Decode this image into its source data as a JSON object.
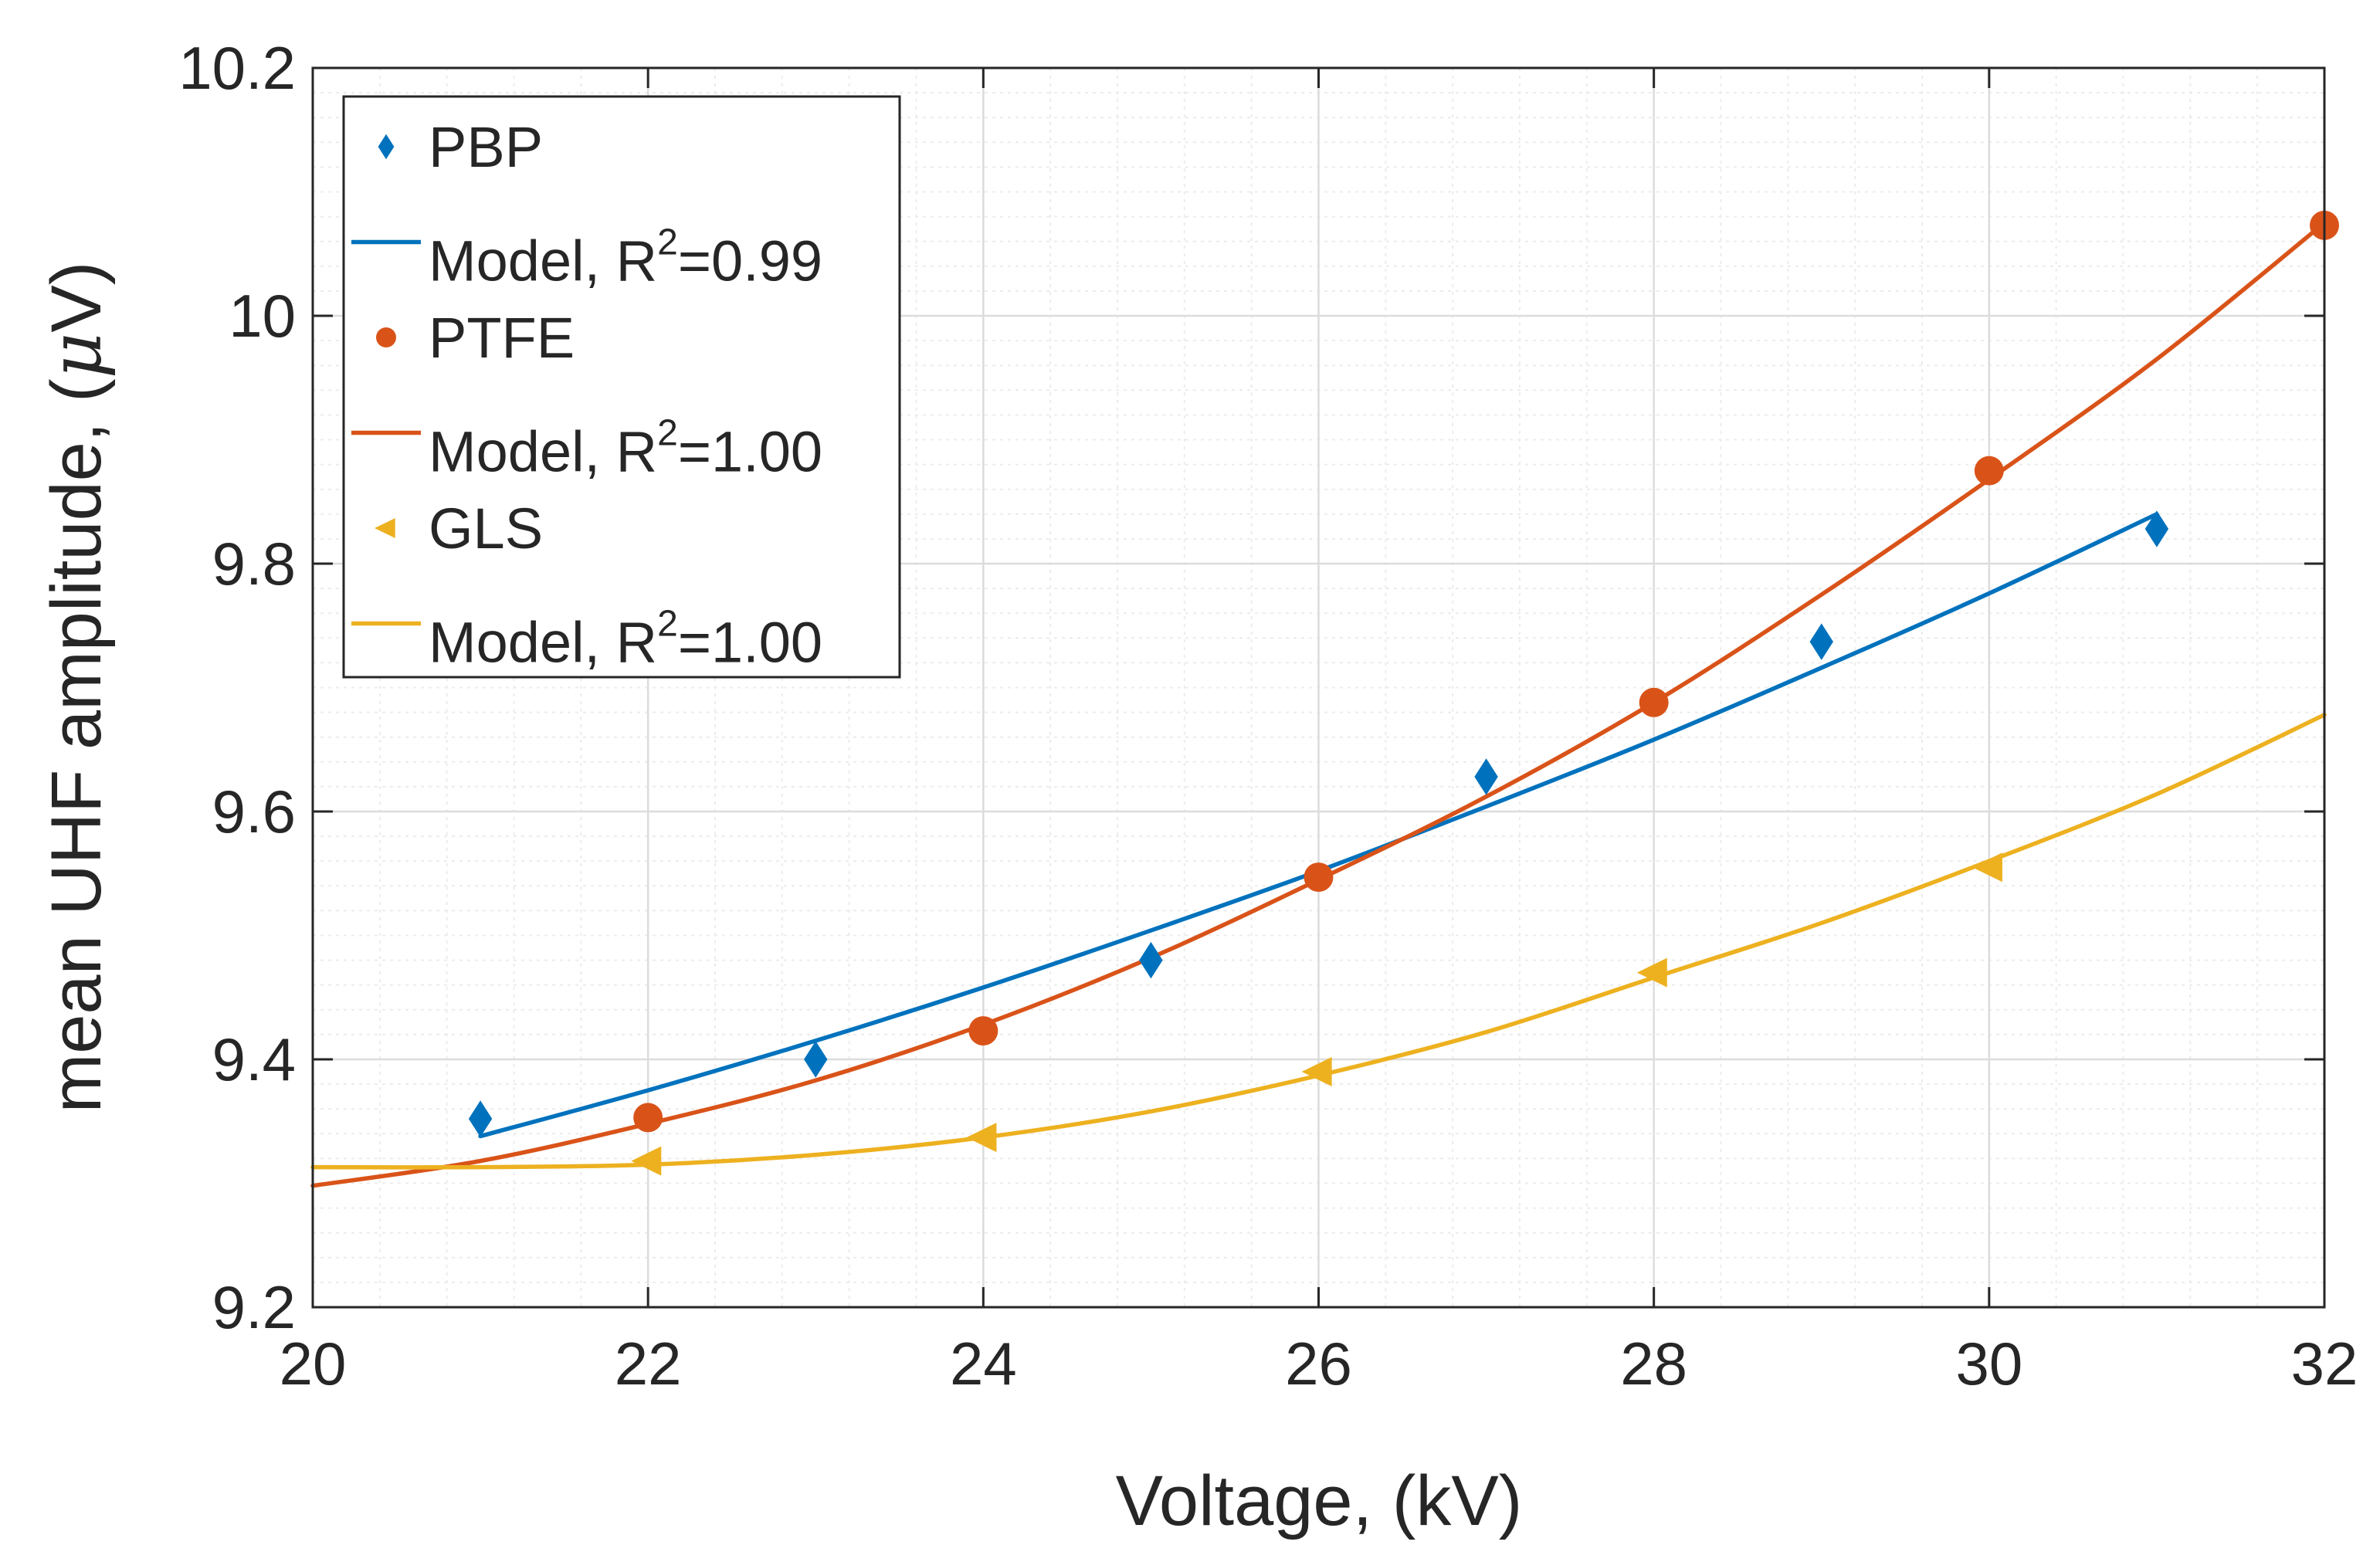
{
  "chart_data": {
    "type": "scatter",
    "xlabel": "Voltage, (kV)",
    "ylabel_prefix": "mean UHF amplitude, (",
    "ylabel_mu": "μ",
    "ylabel_suffix": "V)",
    "xlim": [
      20,
      32
    ],
    "ylim": [
      9.2,
      10.2
    ],
    "x_ticks": [
      "20",
      "22",
      "24",
      "26",
      "28",
      "30",
      "32"
    ],
    "y_ticks": [
      "9.2",
      "9.4",
      "9.6",
      "9.8",
      "10",
      "10.2"
    ],
    "grid": true,
    "minor_grid": true,
    "legend_position": "top-left",
    "series": [
      {
        "name": "PBP",
        "kind": "points",
        "marker": "diamond",
        "color": "#0072BD",
        "x": [
          21,
          23,
          25,
          27,
          29,
          31
        ],
        "y": [
          9.352,
          9.4,
          9.48,
          9.628,
          9.737,
          9.828
        ]
      },
      {
        "name": "Model, R",
        "sup": "2",
        "tail": "=0.99",
        "kind": "line",
        "color": "#0072BD",
        "x": [
          21,
          22,
          23,
          24,
          25,
          26,
          27,
          28,
          29,
          30,
          31
        ],
        "y": [
          9.338,
          9.375,
          9.415,
          9.458,
          9.504,
          9.552,
          9.604,
          9.658,
          9.716,
          9.776,
          9.84
        ]
      },
      {
        "name": "PTFE",
        "kind": "points",
        "marker": "circle",
        "color": "#D95319",
        "x": [
          22,
          24,
          26,
          28,
          30,
          32
        ],
        "y": [
          9.353,
          9.423,
          9.547,
          9.688,
          9.875,
          10.073
        ]
      },
      {
        "name": "Model, R",
        "sup": "2",
        "tail": "=1.00",
        "kind": "line",
        "color": "#D95319",
        "x": [
          20,
          21,
          22,
          23,
          24,
          25,
          26,
          27,
          28,
          29,
          30,
          31,
          32
        ],
        "y": [
          9.298,
          9.318,
          9.348,
          9.383,
          9.428,
          9.482,
          9.545,
          9.612,
          9.688,
          9.775,
          9.868,
          9.965,
          10.075
        ]
      },
      {
        "name": "GLS",
        "kind": "points",
        "marker": "triangle-left",
        "color": "#EDB120",
        "x": [
          22,
          24,
          26,
          28,
          30
        ],
        "y": [
          9.318,
          9.337,
          9.39,
          9.47,
          9.555
        ]
      },
      {
        "name": "Model, R",
        "sup": "2",
        "tail": "=1.00",
        "kind": "line",
        "color": "#EDB120",
        "x": [
          20,
          21,
          22,
          23,
          24,
          25,
          26,
          27,
          28,
          29,
          30,
          31,
          32
        ],
        "y": [
          9.313,
          9.313,
          9.315,
          9.323,
          9.337,
          9.358,
          9.387,
          9.422,
          9.466,
          9.51,
          9.56,
          9.614,
          9.678
        ]
      }
    ]
  }
}
